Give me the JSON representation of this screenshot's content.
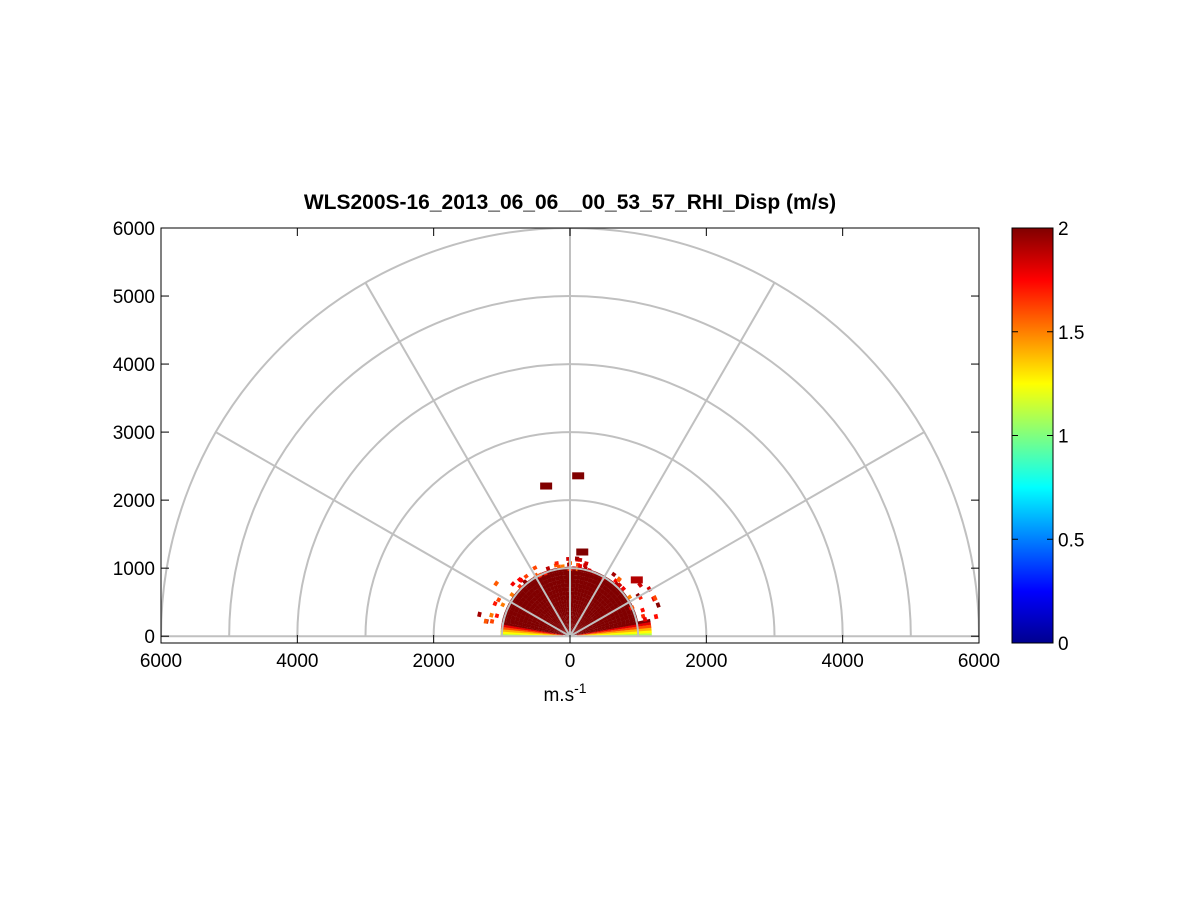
{
  "chart_data": {
    "type": "heatmap",
    "subtype": "polar-rhi",
    "title": "WLS200S-16_2013_06_06__00_53_57_RHI_Disp (m/s)",
    "xlabel": "m.s",
    "xlabel_superscript": "-1",
    "ylabel": "",
    "xlim": [
      -6000,
      6000
    ],
    "ylim": [
      -100,
      6000
    ],
    "x_tick_values": [
      -6000,
      -4000,
      -2000,
      0,
      2000,
      4000,
      6000
    ],
    "x_tick_labels": [
      "6000",
      "4000",
      "2000",
      "0",
      "2000",
      "4000",
      "6000"
    ],
    "y_tick_values": [
      0,
      1000,
      2000,
      3000,
      4000,
      5000,
      6000
    ],
    "y_tick_labels": [
      "0",
      "1000",
      "2000",
      "3000",
      "4000",
      "5000",
      "6000"
    ],
    "grid": true,
    "polar_grid": {
      "range_rings": [
        1000,
        2000,
        3000,
        4000,
        5000,
        6000
      ],
      "spoke_angles_deg": [
        0,
        30,
        60,
        90,
        120,
        150,
        180
      ]
    },
    "colorbar": {
      "colormap": "jet",
      "clim": [
        0,
        2
      ],
      "tick_values": [
        0,
        0.5,
        1,
        1.5,
        2
      ],
      "tick_labels": [
        "0",
        "0.5",
        "1",
        "1.5",
        "2"
      ]
    },
    "scan_data": {
      "description_free": true,
      "core_region": {
        "max_range": 1000,
        "elev_min_deg": 12,
        "elev_max_deg": 168,
        "value": 2
      },
      "low_elevation_band": {
        "range_min": 100,
        "range_max": 1200,
        "elev_min_deg": 0,
        "elev_max_deg": 12,
        "values_low_to_high_elevation": [
          1.1,
          1.25,
          1.4,
          1.6,
          1.8,
          2
        ]
      },
      "edge_speckle_value_range": [
        1.5,
        2
      ],
      "isolated_patches": [
        {
          "x": -350,
          "y": 2200,
          "value": 2
        },
        {
          "x": 120,
          "y": 2350,
          "value": 2
        },
        {
          "x": 180,
          "y": 1230,
          "value": 2
        },
        {
          "x": 980,
          "y": 820,
          "value": 1.9
        }
      ]
    }
  }
}
